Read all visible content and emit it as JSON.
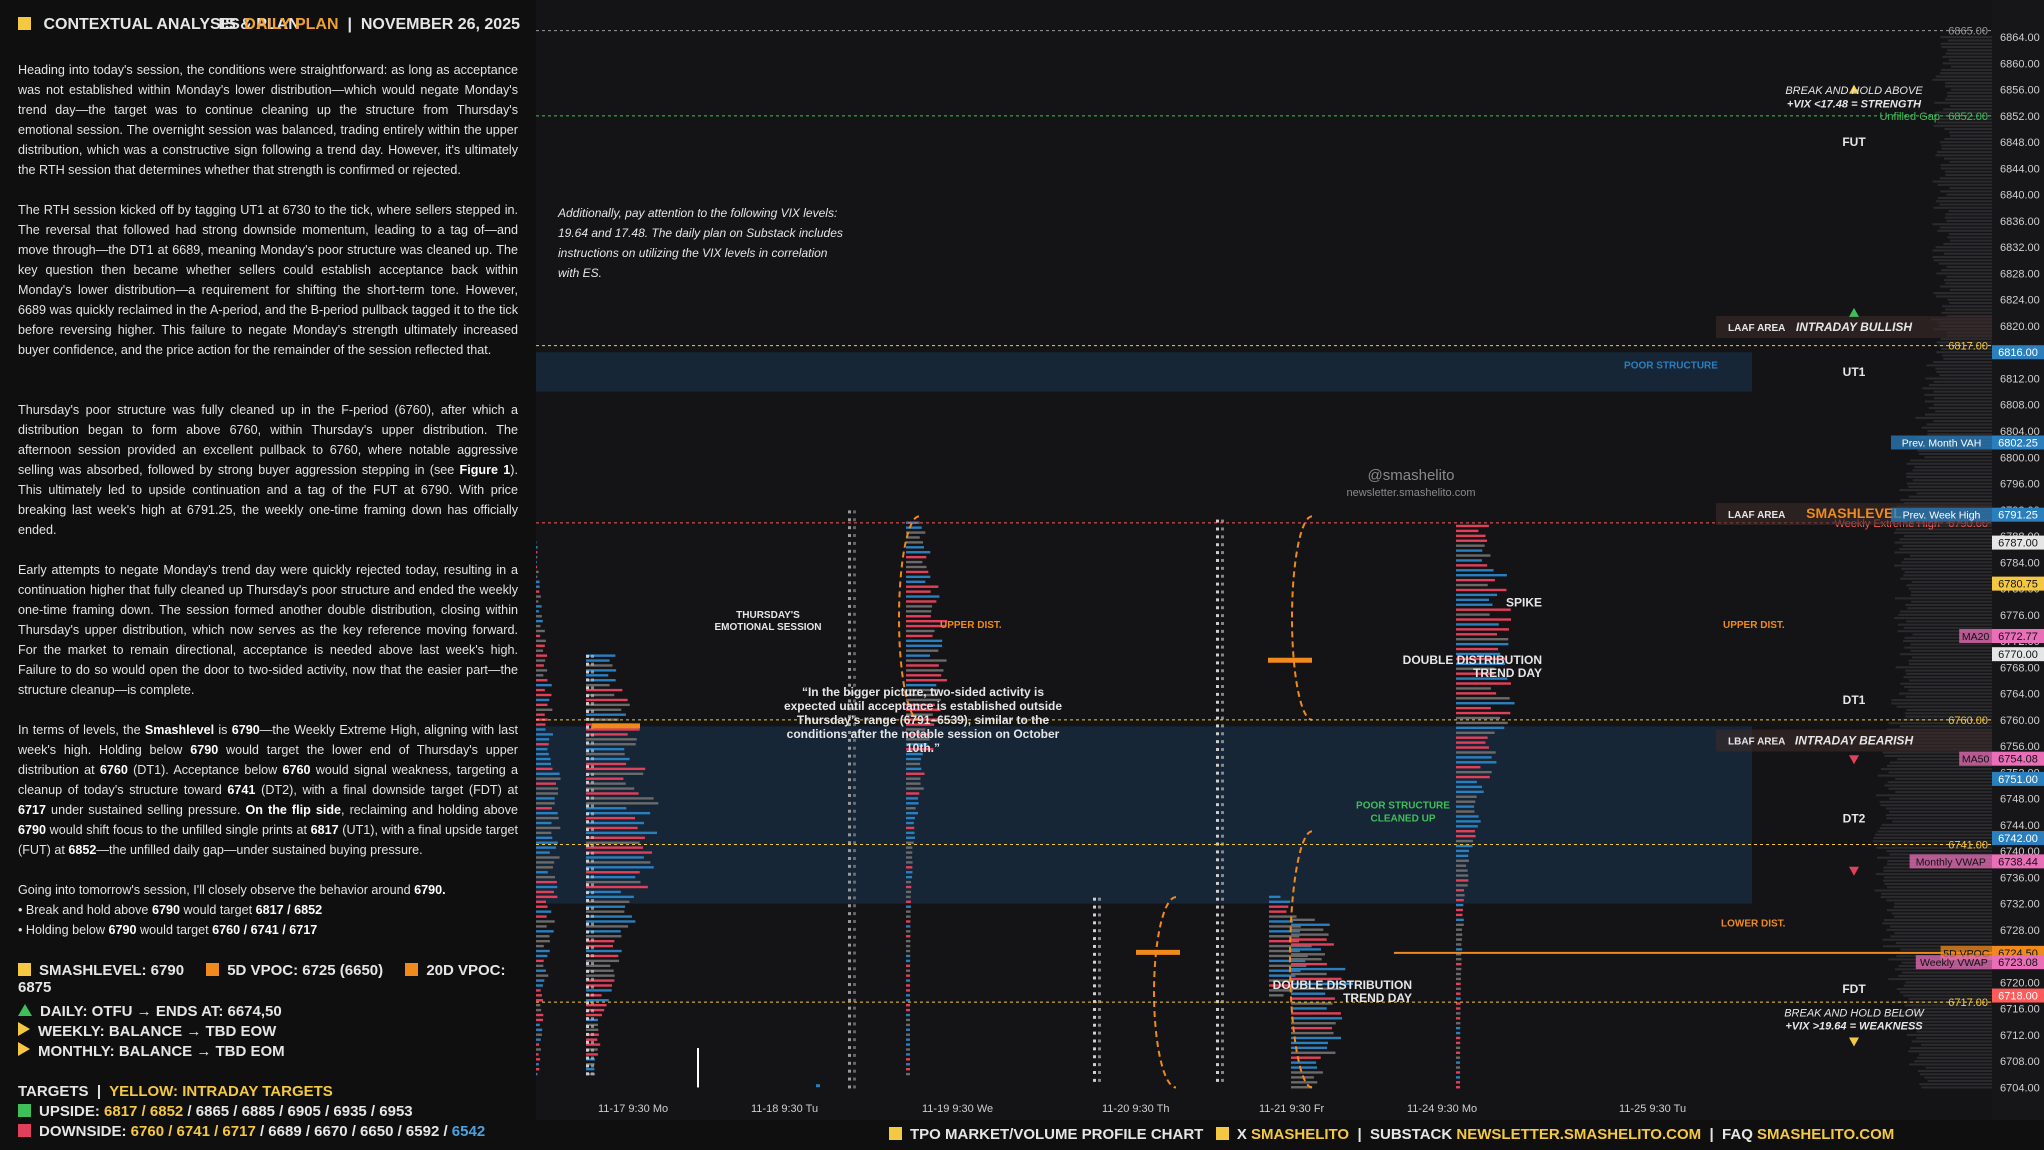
{
  "header": {
    "title": "CONTEXTUAL ANALYSIS & PLAN",
    "plan_prefix": "ES",
    "plan_name": "DAILY PLAN",
    "date": "NOVEMBER 26, 2025"
  },
  "paragraphs": [
    "Heading into today's session, the conditions were straightforward: as long as acceptance was not established within Monday's lower distribution—which would negate Monday's trend day—the target was to continue cleaning up the structure from Thursday's emotional session. The overnight session was balanced, trading entirely within the upper distribution, which was a constructive sign following a trend day. However, it's ultimately the RTH session that determines whether that strength is confirmed or rejected.",
    "The RTH session kicked off by tagging UT1 at 6730 to the tick, where sellers stepped in. The reversal that followed had strong downside momentum, leading to a tag of—and move through—the DT1 at 6689, meaning Monday's poor structure was cleaned up. The key question then became whether sellers could establish acceptance back within Monday's lower distribution—a requirement for shifting the short-term tone. However, 6689 was quickly reclaimed in the A-period, and the B-period pullback tagged it to the tick before reversing higher. This failure to negate Monday's strength ultimately increased buyer confidence, and the price action for the remainder of the session reflected that.",
    "Thursday's poor structure was fully cleaned up in the F-period (6760), after which a distribution began to form above 6760, within Thursday's upper distribution. The afternoon session provided an excellent pullback to 6760, where notable aggressive selling was absorbed, followed by strong buyer aggression stepping in (see <b>Figure 1</b>). This ultimately led to upside continuation and a tag of the FUT at 6790. With price breaking last week's high at 6791.25, the weekly one-time framing down has officially ended.",
    "Early attempts to negate Monday's trend day were quickly rejected today, resulting in a continuation higher that fully cleaned up Thursday's poor structure and ended the weekly one-time framing down. The session formed another double distribution, closing within Thursday's upper distribution, which now serves as the key reference moving forward. For the market to remain directional, acceptance is needed above last week's high. Failure to do so would open the door to two-sided activity, now that the easier part—the structure cleanup—is complete.",
    "In terms of levels, the <b>Smashlevel</b> is <b>6790</b>—the Weekly Extreme High, aligning with last week's high. Holding below <b>6790</b> would target the lower end of Thursday's upper distribution at <b>6760</b> (DT1). Acceptance below <b>6760</b> would signal weakness, targeting a cleanup of today's structure toward <b>6741</b> (DT2), with a final downside target (FDT) at <b>6717</b> under sustained selling pressure. <b>On the flip side</b>, reclaiming and holding above <b>6790</b> would shift focus to the unfilled single prints at <b>6817</b> (UT1), with a final upside target (FUT) at <b>6852</b>—the unfilled daily gap—under sustained buying pressure.",
    "Going into tomorrow's session, I'll closely observe the behavior around <b>6790.</b><br>• Break and hold above <b>6790</b> would target <b>6817 / 6852</b><br>• Holding below <b>6790</b> would target <b>6760 / 6741 / 6717</b>"
  ],
  "levels": {
    "smashlevel": "SMASHLEVEL: 6790",
    "vpoc5": "5D VPOC: 6725 (6650)",
    "vpoc20": "20D VPOC: 6875"
  },
  "bias": {
    "daily": "DAILY: OTFU → ENDS AT: 6674,50",
    "weekly": "WEEKLY: BALANCE → TBD EOW",
    "monthly": "MONTHLY: BALANCE → TBD EOM"
  },
  "targets": {
    "heading": "TARGETS",
    "heading_note": "YELLOW: INTRADAY TARGETS",
    "upside_label": "UPSIDE:",
    "upside_intraday": "6817 / 6852",
    "upside_rest": " / 6865 / 6885 / 6905 / 6935 / 6953",
    "downside_label": "DOWNSIDE:",
    "downside_intraday": "6760 / 6741 / 6717",
    "downside_rest": " / 6689 / 6670 / 6650 / 6592 / ",
    "downside_last": "6542"
  },
  "footer": {
    "chart_label": "TPO MARKET/VOLUME PROFILE CHART",
    "x_label": "X",
    "x_handle": "SMASHELITO",
    "substack_label": "SUBSTACK",
    "substack_url": "NEWSLETTER.SMASHELITO.COM",
    "faq_label": "FAQ",
    "faq_url": "SMASHELITO.COM",
    "separator": "|"
  },
  "chart_data": {
    "type": "tpo_profile",
    "ylim": [
      6703,
      6866
    ],
    "y_ticks": [
      6704,
      6708,
      6712,
      6716,
      6720,
      6724,
      6728,
      6732,
      6736,
      6740,
      6744,
      6748,
      6752,
      6756,
      6760,
      6764,
      6768,
      6772,
      6776,
      6780,
      6784,
      6788,
      6792,
      6796,
      6800,
      6804,
      6808,
      6812,
      6816,
      6820,
      6824,
      6828,
      6832,
      6836,
      6840,
      6844,
      6848,
      6852,
      6856,
      6860,
      6864
    ],
    "date_labels": [
      "11-17  9:30 Mo",
      "11-18  9:30 Tu",
      "11-19  9:30 We",
      "11-20  9:30 Th",
      "11-21  9:30 Fr",
      "11-24  9:30 Mo",
      "11-25  9:30 Tu"
    ],
    "ref_lines": [
      {
        "price": 6865,
        "label": "6865.00",
        "color": "#9a9a9a",
        "style": "dashed"
      },
      {
        "price": 6852,
        "label": "6852.00",
        "color": "#3fbf5a",
        "style": "dashed",
        "tag": "Unfilled Gap"
      },
      {
        "price": 6817,
        "label": "6817.00",
        "color": "#f5c842",
        "style": "dashed"
      },
      {
        "price": 6790,
        "label": "6790.00",
        "color": "#ff5a5a",
        "style": "dashed",
        "tag": "Weekly Extreme High"
      },
      {
        "price": 6760,
        "label": "6760.00",
        "color": "#f5c842",
        "style": "dashed"
      },
      {
        "price": 6741,
        "label": "6741.00",
        "color": "#f5c842",
        "style": "dashed"
      },
      {
        "price": 6717,
        "label": "6717.00",
        "color": "#f5c842",
        "style": "dashed"
      }
    ],
    "price_tags": [
      {
        "price": 6816,
        "label": "6816.00",
        "bg": "#2a7fbf",
        "fg": "#ffffff"
      },
      {
        "price": 6802.25,
        "label": "6802.25",
        "bg": "#2a7fbf",
        "fg": "#ffffff",
        "tag": "Prev. Month VAH"
      },
      {
        "price": 6791.25,
        "label": "6791.25",
        "bg": "#2a7fbf",
        "fg": "#ffffff",
        "tag": "Prev. Week High"
      },
      {
        "price": 6787,
        "label": "6787.00",
        "bg": "#e6e6e6",
        "fg": "#111111"
      },
      {
        "price": 6780.75,
        "label": "6780.75",
        "bg": "#f5c842",
        "fg": "#111111"
      },
      {
        "price": 6772.77,
        "label": "6772.77",
        "bg": "#e86fb8",
        "fg": "#111111",
        "tag": "MA20"
      },
      {
        "price": 6770,
        "label": "6770.00",
        "bg": "#e6e6e6",
        "fg": "#111111"
      },
      {
        "price": 6754.08,
        "label": "6754.08",
        "bg": "#e86fb8",
        "fg": "#111111",
        "tag": "MA50"
      },
      {
        "price": 6751,
        "label": "6751.00",
        "bg": "#2a7fbf",
        "fg": "#ffffff"
      },
      {
        "price": 6742,
        "label": "6742.00",
        "bg": "#2a7fbf",
        "fg": "#ffffff"
      },
      {
        "price": 6738.44,
        "label": "6738.44",
        "bg": "#e86fb8",
        "fg": "#111111",
        "tag": "Monthly VWAP"
      },
      {
        "price": 6724.5,
        "label": "6724.50",
        "bg": "#f08a1c",
        "fg": "#111111",
        "tag": "5D VPOC"
      },
      {
        "price": 6723.08,
        "label": "6723.08",
        "bg": "#e86fb8",
        "fg": "#111111",
        "tag": "Weekly VWAP"
      },
      {
        "price": 6718,
        "label": "6718.00",
        "bg": "#ff5a5a",
        "fg": "#ffffff"
      }
    ],
    "zone_labels": [
      {
        "price": 6820,
        "text": "LAAF AREA",
        "right": "INTRADAY BULLISH"
      },
      {
        "price": 6791.5,
        "text": "LAAF AREA",
        "right": "SMASHLEVEL"
      },
      {
        "price": 6757,
        "text": "LBAF AREA",
        "right": "INTRADAY BEARISH"
      }
    ],
    "target_labels": [
      {
        "price": 6848,
        "text": "FUT"
      },
      {
        "price": 6813,
        "text": "UT1"
      },
      {
        "price": 6763,
        "text": "DT1"
      },
      {
        "price": 6745,
        "text": "DT2"
      },
      {
        "price": 6719,
        "text": "FDT"
      }
    ],
    "poor_structure": [
      {
        "from": 6810,
        "to": 6816,
        "label": "POOR STRUCTURE"
      },
      {
        "from": 6732,
        "to": 6759,
        "label": "POOR STRUCTURE\nCLEANED UP"
      }
    ],
    "annotations": {
      "vix_note": "Additionally, pay attention to the following VIX levels: 19.64 and 17.48. The daily plan on Substack includes instructions on utilizing the VIX levels in correlation with ES.",
      "break_hold_above": "BREAK AND HOLD ABOVE",
      "vix_above": "+VIX <17.48 = STRENGTH",
      "break_hold_below": "BREAK AND HOLD BELOW",
      "vix_below": "+VIX >19.64 = WEAKNESS",
      "watermark": "@smashelito",
      "watermark_url": "newsletter.smashelito.com",
      "thursday": "THURSDAY'S\nEMOTIONAL SESSION",
      "quote": "“In the bigger picture, two-sided activity is expected until acceptance is established outside Thursday’s range (6791–6539), similar to the conditions after the notable session on October 10th.”",
      "upper_dist": "UPPER DIST.",
      "lower_dist": "LOWER DIST.",
      "spike": "SPIKE",
      "double_dist": "DOUBLE DISTRIBUTION\nTREND DAY"
    },
    "colors": {
      "background": "#141416",
      "up": "#2a7fbf",
      "down": "#e0405a",
      "neutral": "#6a6a6a",
      "accent": "#f5c842"
    }
  }
}
